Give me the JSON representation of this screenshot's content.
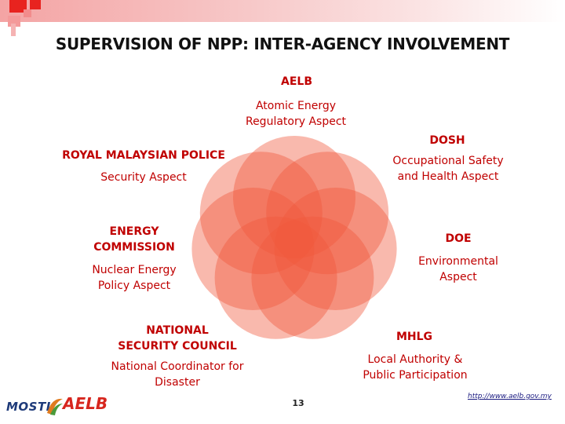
{
  "slide": {
    "title": "SUPERVISION OF  NPP: INTER-AGENCY INVOLVEMENT",
    "page_number": "13",
    "url": "http://www.aelb.gov.my",
    "accent_color": "#c00000",
    "petal_color": "#f0573c"
  },
  "logos": {
    "mosti": "MOSTI",
    "aelb": "AELB"
  },
  "agencies": [
    {
      "name": "AELB",
      "aspect": "Atomic Energy Regulatory Aspect"
    },
    {
      "name": "DOSH",
      "aspect": "Occupational Safety and Health Aspect"
    },
    {
      "name": "DOE",
      "aspect": "Environmental Aspect"
    },
    {
      "name": "MHLG",
      "aspect": "Local Authority & Public Participation"
    },
    {
      "name": "NATIONAL SECURITY COUNCIL",
      "aspect": "National Coordinator for Disaster"
    },
    {
      "name": "ENERGY COMMISSION",
      "aspect": "Nuclear Energy Policy Aspect"
    },
    {
      "name": "ROYAL MALAYSIAN POLICE",
      "aspect": "Security Aspect"
    }
  ]
}
